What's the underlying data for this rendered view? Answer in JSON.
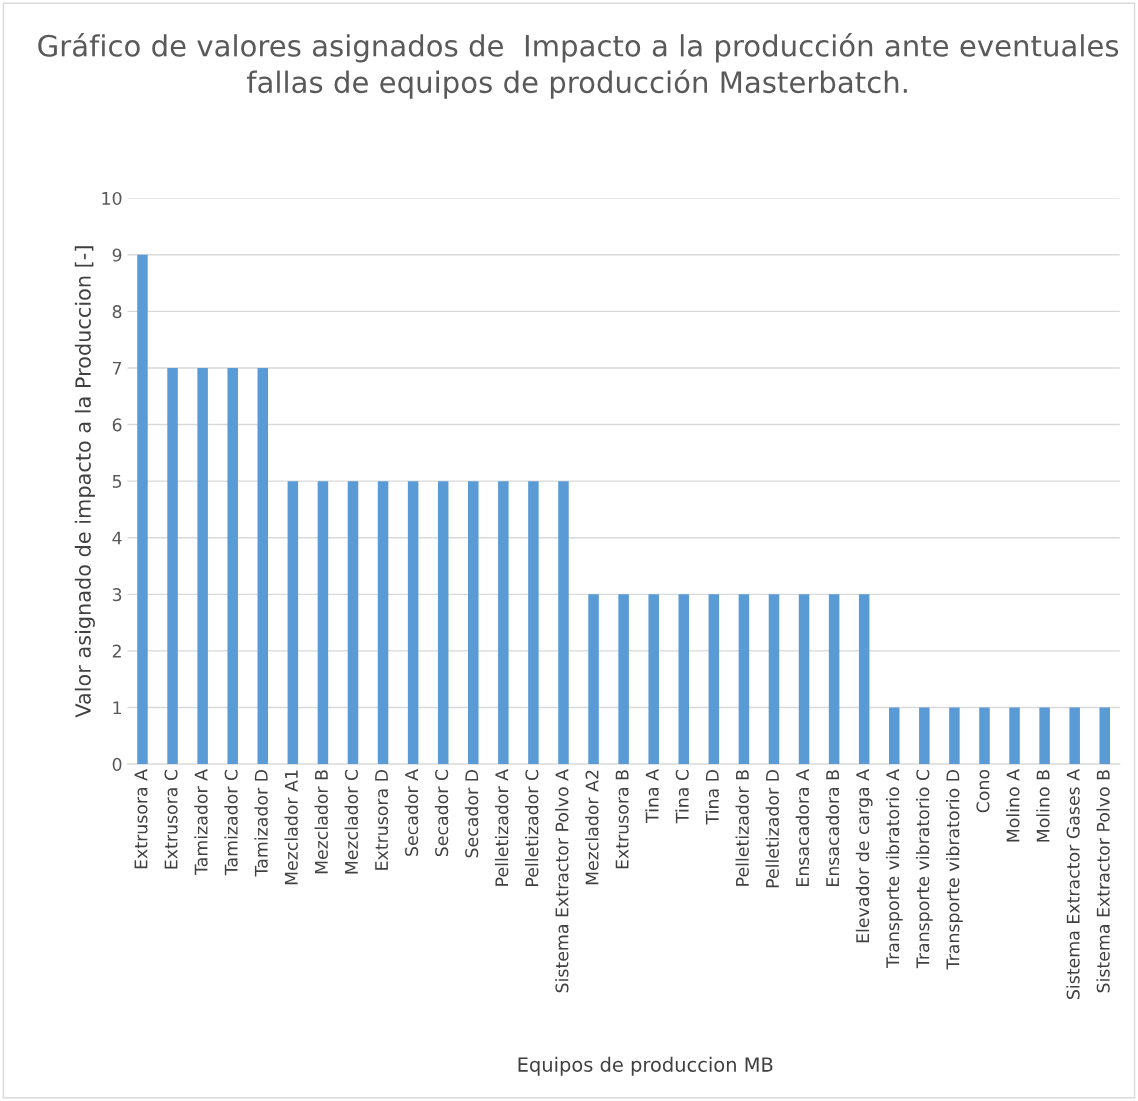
{
  "chart_data": {
    "type": "bar",
    "title": "Gráfico de valores asignados de  Impacto a la producción ante eventuales fallas de equipos de producción Masterbatch.",
    "xlabel": "Equipos de produccion MB",
    "ylabel": "Valor asignado de impacto a la Produccion [-]",
    "categories": [
      "Extrusora A",
      "Extrusora C",
      "Tamizador A",
      "Tamizador C",
      "Tamizador D",
      "Mezclador A1",
      "Mezclador B",
      "Mezclador C",
      "Extrusora D",
      "Secador A",
      "Secador C",
      "Secador D",
      "Pelletizador A",
      "Pelletizador C",
      "Sistema Extractor Polvo A",
      "Mezclador A2",
      "Extrusora B",
      "Tina A",
      "Tina C",
      "Tina D",
      "Pelletizador B",
      "Pelletizador D",
      "Ensacadora A",
      "Ensacadora B",
      "Elevador de carga A",
      "Transporte vibratorio A",
      "Transporte vibratorio C",
      "Transporte vibratorio D",
      "Cono",
      "Molino A",
      "Molino B",
      "Sistema Extractor Gases A",
      "Sistema Extractor Polvo B"
    ],
    "values": [
      9,
      7,
      7,
      7,
      7,
      5,
      5,
      5,
      5,
      5,
      5,
      5,
      5,
      5,
      5,
      3,
      3,
      3,
      3,
      3,
      3,
      3,
      3,
      3,
      3,
      1,
      1,
      1,
      1,
      1,
      1,
      1,
      1
    ],
    "color": "#5b9bd5",
    "ylim": [
      0,
      10
    ],
    "yticks": [
      0,
      1,
      2,
      3,
      4,
      5,
      6,
      7,
      8,
      9,
      10
    ],
    "grid": "y",
    "legend": false
  }
}
